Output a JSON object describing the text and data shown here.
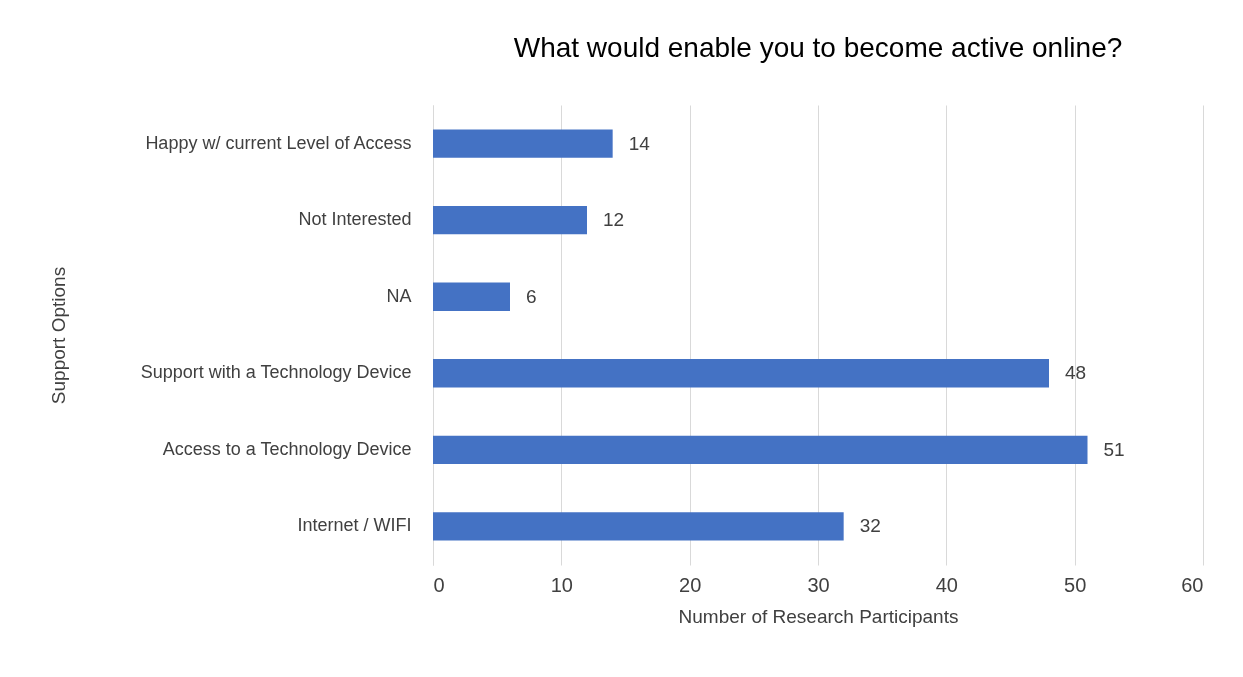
{
  "chart_data": {
    "type": "bar",
    "orientation": "horizontal",
    "title": "What would enable you to become active online?",
    "xlabel": "Number of Research Participants",
    "ylabel": "Support Options",
    "categories": [
      "Happy w/ current Level of Access",
      "Not Interested",
      "NA",
      "Support with a Technology Device",
      "Access to a Technology Device",
      "Internet / WIFI"
    ],
    "values": [
      14,
      12,
      6,
      48,
      51,
      32
    ],
    "color": "#4472c4",
    "xlim": [
      0,
      60
    ],
    "xticks": [
      0,
      10,
      20,
      30,
      40,
      50,
      60
    ],
    "grid": "x",
    "data_labels": true
  }
}
